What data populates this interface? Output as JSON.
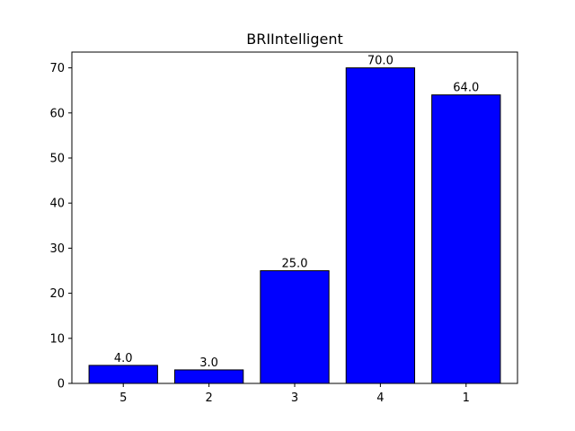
{
  "chart_data": {
    "type": "bar",
    "title": "BRIIntelligent",
    "xlabel": "",
    "ylabel": "",
    "categories": [
      "5",
      "2",
      "3",
      "4",
      "1"
    ],
    "values": [
      4.0,
      3.0,
      25.0,
      70.0,
      64.0
    ],
    "data_labels": [
      "4.0",
      "3.0",
      "25.0",
      "70.0",
      "64.0"
    ],
    "yticks": [
      0,
      10,
      20,
      30,
      40,
      50,
      60,
      70
    ],
    "ylim": [
      0,
      73.5
    ],
    "grid": false,
    "legend": "none",
    "bar_color": "#0000ff",
    "edge_color": "#000000"
  }
}
